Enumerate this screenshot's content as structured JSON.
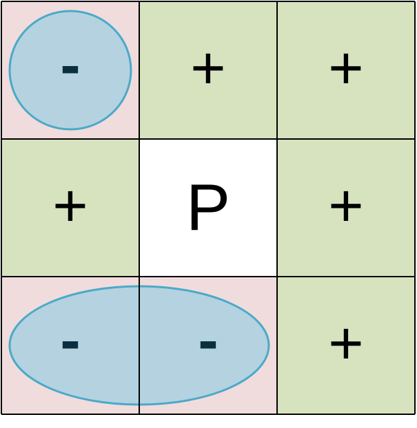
{
  "grid": {
    "cells": [
      {
        "row": 0,
        "col": 0,
        "label": "",
        "fill": "pink"
      },
      {
        "row": 0,
        "col": 1,
        "label": "+",
        "fill": "green"
      },
      {
        "row": 0,
        "col": 2,
        "label": "+",
        "fill": "green"
      },
      {
        "row": 1,
        "col": 0,
        "label": "+",
        "fill": "green"
      },
      {
        "row": 1,
        "col": 1,
        "label": "P",
        "fill": "white"
      },
      {
        "row": 1,
        "col": 2,
        "label": "+",
        "fill": "green"
      },
      {
        "row": 2,
        "col": 0,
        "label": "",
        "fill": "pink"
      },
      {
        "row": 2,
        "col": 1,
        "label": "",
        "fill": "pink"
      },
      {
        "row": 2,
        "col": 2,
        "label": "+",
        "fill": "green"
      }
    ],
    "groups": [
      {
        "name": "top-left-circle",
        "cells": [
          [
            0,
            0
          ]
        ],
        "labels": [
          "-"
        ]
      },
      {
        "name": "bottom-ellipse",
        "cells": [
          [
            2,
            0
          ],
          [
            2,
            1
          ]
        ],
        "labels": [
          "-",
          "-"
        ]
      }
    ]
  },
  "colors": {
    "pink": "#f0dcdc",
    "green": "#d7e3bf",
    "white": "#ffffff",
    "group_fill": "#b4d2e0",
    "group_stroke": "#4ba9c8",
    "minus_text": "#0b2f3f",
    "plus_text": "#000000",
    "grid_line": "#000000"
  }
}
